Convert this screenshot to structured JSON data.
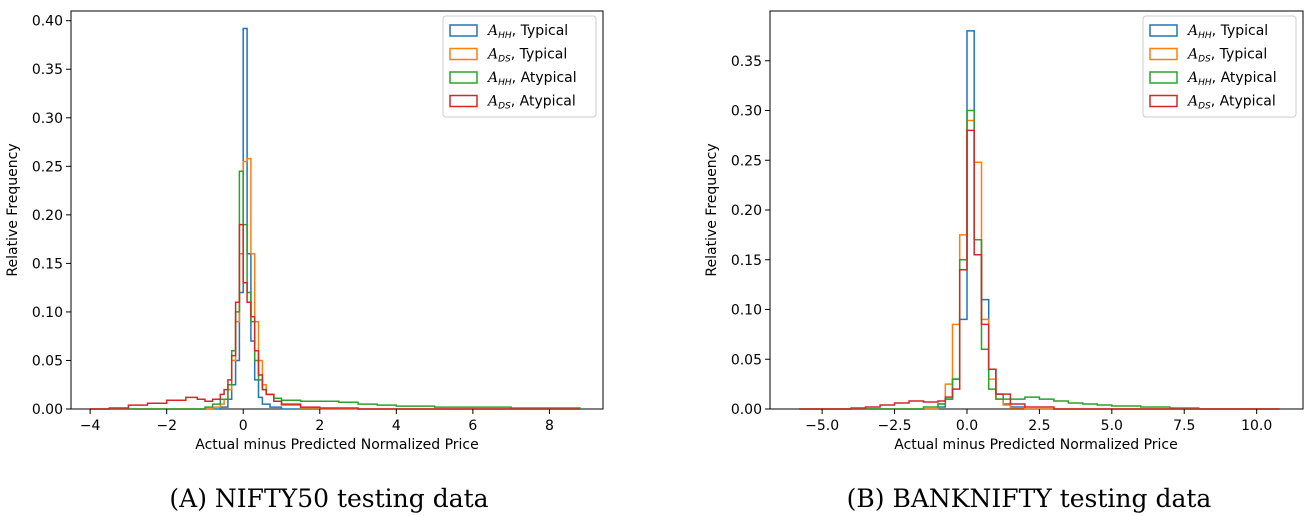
{
  "chart_data": [
    {
      "type": "histogram",
      "caption": "(A) NIFTY50 testing data",
      "xlabel": "Actual  minus Predicted Normalized Price",
      "ylabel": "Relative Frequency",
      "xlim": [
        -4.5,
        9.4
      ],
      "ylim": [
        0,
        0.41
      ],
      "xticks": [
        -4,
        -2,
        0,
        2,
        4,
        6,
        8
      ],
      "xtick_labels": [
        "−4",
        "−2",
        "0",
        "2",
        "4",
        "6",
        "8"
      ],
      "yticks": [
        0,
        0.05,
        0.1,
        0.15,
        0.2,
        0.25,
        0.3,
        0.35,
        0.4
      ],
      "ytick_labels": [
        "0.00",
        "0.05",
        "0.10",
        "0.15",
        "0.20",
        "0.25",
        "0.30",
        "0.35",
        "0.40"
      ],
      "legend_position": "top-right",
      "series": [
        {
          "name": "AHH",
          "label_main": "A",
          "label_sub": "HH",
          "label_rest": ", Typical",
          "color": "#1f77b4",
          "points": [
            [
              -4,
              0
            ],
            [
              -1,
              0
            ],
            [
              -0.6,
              0.002
            ],
            [
              -0.4,
              0.01
            ],
            [
              -0.3,
              0.025
            ],
            [
              -0.2,
              0.05
            ],
            [
              -0.1,
              0.12
            ],
            [
              0.0,
              0.392
            ],
            [
              0.1,
              0.16
            ],
            [
              0.2,
              0.07
            ],
            [
              0.3,
              0.03
            ],
            [
              0.4,
              0.012
            ],
            [
              0.5,
              0.005
            ],
            [
              0.7,
              0.002
            ],
            [
              1.0,
              0
            ],
            [
              8.8,
              0
            ]
          ]
        },
        {
          "name": "ADS",
          "label_main": "A",
          "label_sub": "DS",
          "label_rest": ", Typical",
          "color": "#ff7f0e",
          "points": [
            [
              -4,
              0
            ],
            [
              -1,
              0
            ],
            [
              -0.8,
              0.002
            ],
            [
              -0.6,
              0.005
            ],
            [
              -0.5,
              0.01
            ],
            [
              -0.4,
              0.02
            ],
            [
              -0.3,
              0.05
            ],
            [
              -0.2,
              0.09
            ],
            [
              -0.1,
              0.16
            ],
            [
              0.0,
              0.255
            ],
            [
              0.1,
              0.258
            ],
            [
              0.2,
              0.16
            ],
            [
              0.3,
              0.09
            ],
            [
              0.4,
              0.05
            ],
            [
              0.5,
              0.025
            ],
            [
              0.6,
              0.015
            ],
            [
              0.8,
              0.008
            ],
            [
              1.0,
              0.004
            ],
            [
              1.5,
              0.001
            ],
            [
              2.0,
              0
            ],
            [
              8.8,
              0
            ]
          ]
        },
        {
          "name": "AHH-atypical",
          "label_main": "A",
          "label_sub": "HH",
          "label_rest": ", Atypical",
          "color": "#2ca02c",
          "points": [
            [
              -4,
              0
            ],
            [
              -1.5,
              0
            ],
            [
              -1.0,
              0.002
            ],
            [
              -0.8,
              0.005
            ],
            [
              -0.6,
              0.01
            ],
            [
              -0.4,
              0.025
            ],
            [
              -0.3,
              0.06
            ],
            [
              -0.2,
              0.1
            ],
            [
              -0.1,
              0.245
            ],
            [
              0.0,
              0.19
            ],
            [
              0.1,
              0.12
            ],
            [
              0.2,
              0.09
            ],
            [
              0.3,
              0.05
            ],
            [
              0.4,
              0.03
            ],
            [
              0.5,
              0.02
            ],
            [
              0.6,
              0.015
            ],
            [
              0.8,
              0.011
            ],
            [
              1.0,
              0.009
            ],
            [
              1.5,
              0.008
            ],
            [
              2.0,
              0.008
            ],
            [
              2.5,
              0.007
            ],
            [
              3.0,
              0.005
            ],
            [
              3.5,
              0.004
            ],
            [
              4.0,
              0.003
            ],
            [
              5.0,
              0.002
            ],
            [
              6.0,
              0.002
            ],
            [
              7.0,
              0.001
            ],
            [
              8.0,
              0.001
            ],
            [
              8.8,
              0
            ]
          ]
        },
        {
          "name": "ADS-atypical",
          "label_main": "A",
          "label_sub": "DS",
          "label_rest": ", Atypical",
          "color": "#d62728",
          "points": [
            [
              -4,
              0
            ],
            [
              -3.5,
              0.001
            ],
            [
              -3.0,
              0.004
            ],
            [
              -2.5,
              0.006
            ],
            [
              -2.0,
              0.009
            ],
            [
              -1.5,
              0.012
            ],
            [
              -1.2,
              0.01
            ],
            [
              -1.0,
              0.008
            ],
            [
              -0.8,
              0.01
            ],
            [
              -0.6,
              0.015
            ],
            [
              -0.5,
              0.02
            ],
            [
              -0.4,
              0.03
            ],
            [
              -0.3,
              0.055
            ],
            [
              -0.2,
              0.11
            ],
            [
              -0.1,
              0.19
            ],
            [
              0.0,
              0.13
            ],
            [
              0.1,
              0.11
            ],
            [
              0.2,
              0.095
            ],
            [
              0.3,
              0.06
            ],
            [
              0.4,
              0.035
            ],
            [
              0.5,
              0.02
            ],
            [
              0.6,
              0.015
            ],
            [
              0.8,
              0.008
            ],
            [
              1.0,
              0.005
            ],
            [
              1.5,
              0.002
            ],
            [
              2.0,
              0.001
            ],
            [
              3.0,
              0
            ],
            [
              8.8,
              0
            ]
          ]
        }
      ]
    },
    {
      "type": "histogram",
      "caption": "(B) BANKNIFTY testing data",
      "xlabel": "Actual  minus Predicted Normalized Price",
      "ylabel": "Relative Frequency",
      "xlim": [
        -6.8,
        11.6
      ],
      "ylim": [
        0,
        0.4
      ],
      "xticks": [
        -5,
        -2.5,
        0,
        2.5,
        5,
        7.5,
        10
      ],
      "xtick_labels": [
        "−5.0",
        "−2.5",
        "0.0",
        "2.5",
        "5.0",
        "7.5",
        "10.0"
      ],
      "yticks": [
        0,
        0.05,
        0.1,
        0.15,
        0.2,
        0.25,
        0.3,
        0.35
      ],
      "ytick_labels": [
        "0.00",
        "0.05",
        "0.10",
        "0.15",
        "0.20",
        "0.25",
        "0.30",
        "0.35"
      ],
      "legend_position": "top-right",
      "series": [
        {
          "name": "AHH",
          "label_main": "A",
          "label_sub": "HH",
          "label_rest": ", Typical",
          "color": "#1f77b4",
          "points": [
            [
              -5.8,
              0
            ],
            [
              -1.5,
              0
            ],
            [
              -1.0,
              0.002
            ],
            [
              -0.75,
              0.01
            ],
            [
              -0.5,
              0.03
            ],
            [
              -0.25,
              0.09
            ],
            [
              0.0,
              0.38
            ],
            [
              0.25,
              0.17
            ],
            [
              0.5,
              0.11
            ],
            [
              0.75,
              0.04
            ],
            [
              1.0,
              0.015
            ],
            [
              1.25,
              0.005
            ],
            [
              1.5,
              0.002
            ],
            [
              2.0,
              0
            ],
            [
              10.8,
              0
            ]
          ]
        },
        {
          "name": "ADS",
          "label_main": "A",
          "label_sub": "DS",
          "label_rest": ", Typical",
          "color": "#ff7f0e",
          "points": [
            [
              -5.8,
              0
            ],
            [
              -1.5,
              0
            ],
            [
              -1.0,
              0.005
            ],
            [
              -0.75,
              0.025
            ],
            [
              -0.5,
              0.085
            ],
            [
              -0.25,
              0.175
            ],
            [
              0.0,
              0.29
            ],
            [
              0.25,
              0.248
            ],
            [
              0.5,
              0.09
            ],
            [
              0.75,
              0.03
            ],
            [
              1.0,
              0.01
            ],
            [
              1.25,
              0.004
            ],
            [
              1.5,
              0.001
            ],
            [
              2.0,
              0
            ],
            [
              10.8,
              0
            ]
          ]
        },
        {
          "name": "AHH-atypical",
          "label_main": "A",
          "label_sub": "HH",
          "label_rest": ", Atypical",
          "color": "#2ca02c",
          "points": [
            [
              -5.8,
              0
            ],
            [
              -2.0,
              0
            ],
            [
              -1.5,
              0.002
            ],
            [
              -1.0,
              0.005
            ],
            [
              -0.75,
              0.01
            ],
            [
              -0.5,
              0.03
            ],
            [
              -0.25,
              0.15
            ],
            [
              0.0,
              0.3
            ],
            [
              0.25,
              0.17
            ],
            [
              0.5,
              0.06
            ],
            [
              0.75,
              0.02
            ],
            [
              1.0,
              0.01
            ],
            [
              1.5,
              0.01
            ],
            [
              2.0,
              0.012
            ],
            [
              2.5,
              0.01
            ],
            [
              3.0,
              0.008
            ],
            [
              3.5,
              0.006
            ],
            [
              4.0,
              0.005
            ],
            [
              4.5,
              0.004
            ],
            [
              5.0,
              0.003
            ],
            [
              6.0,
              0.002
            ],
            [
              7.0,
              0.001
            ],
            [
              8.0,
              0
            ],
            [
              10.8,
              0
            ]
          ]
        },
        {
          "name": "ADS-atypical",
          "label_main": "A",
          "label_sub": "DS",
          "label_rest": ", Atypical",
          "color": "#d62728",
          "points": [
            [
              -5.8,
              0
            ],
            [
              -4.0,
              0.001
            ],
            [
              -3.5,
              0.002
            ],
            [
              -3.0,
              0.004
            ],
            [
              -2.5,
              0.006
            ],
            [
              -2.0,
              0.008
            ],
            [
              -1.5,
              0.007
            ],
            [
              -1.0,
              0.008
            ],
            [
              -0.75,
              0.012
            ],
            [
              -0.5,
              0.02
            ],
            [
              -0.25,
              0.14
            ],
            [
              0.0,
              0.28
            ],
            [
              0.25,
              0.155
            ],
            [
              0.5,
              0.085
            ],
            [
              0.75,
              0.04
            ],
            [
              1.0,
              0.015
            ],
            [
              1.5,
              0.005
            ],
            [
              2.0,
              0.002
            ],
            [
              3.0,
              0
            ],
            [
              10.8,
              0
            ]
          ]
        }
      ]
    }
  ]
}
